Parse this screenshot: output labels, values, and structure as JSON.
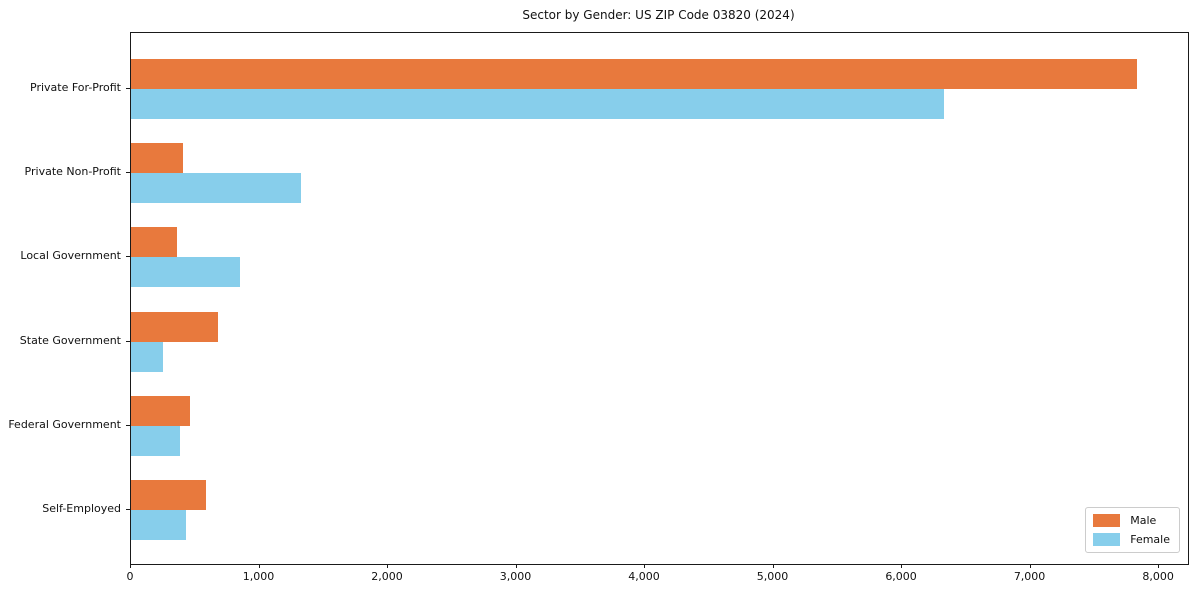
{
  "title": "Sector by Gender: US ZIP Code 03820 (2024)",
  "chart_data": {
    "type": "bar",
    "orientation": "horizontal",
    "title": "Sector by Gender: US ZIP Code 03820 (2024)",
    "categories": [
      "Private For-Profit",
      "Private Non-Profit",
      "Local Government",
      "State Government",
      "Federal Government",
      "Self-Employed"
    ],
    "series": [
      {
        "name": "Male",
        "color": "#e8793d",
        "values": [
          7830,
          405,
          360,
          680,
          460,
          585
        ]
      },
      {
        "name": "Female",
        "color": "#87ceeb",
        "values": [
          6330,
          1325,
          850,
          250,
          380,
          430
        ]
      }
    ],
    "xlabel": "",
    "ylabel": "",
    "xlim": [
      0,
      8225
    ],
    "xticks": [
      0,
      1000,
      2000,
      3000,
      4000,
      5000,
      6000,
      7000,
      8000
    ],
    "xtick_labels": [
      "0",
      "1,000",
      "2,000",
      "3,000",
      "4,000",
      "5,000",
      "6,000",
      "7,000",
      "8,000"
    ],
    "grid": false,
    "legend": {
      "position": "lower right",
      "entries": [
        "Male",
        "Female"
      ]
    }
  }
}
